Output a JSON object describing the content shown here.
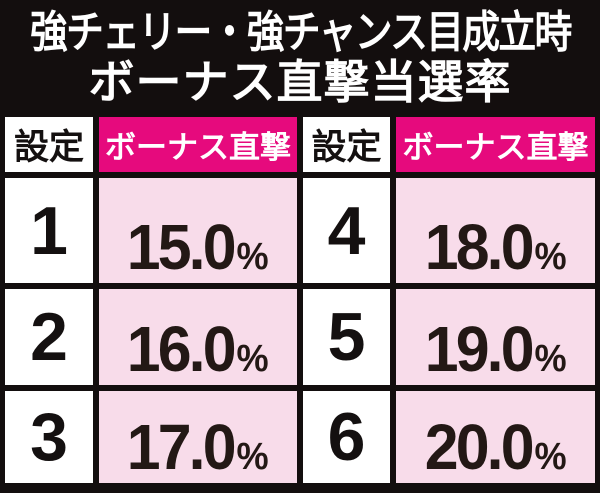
{
  "title": {
    "line1": "強チェリー・強チャンス目成立時",
    "line2": "ボーナス直撃当選率"
  },
  "table": {
    "unit": "%",
    "header": {
      "setting": "設定",
      "bonus": "ボーナス直撃"
    },
    "rows": [
      {
        "l_set": "1",
        "l_val": "15.0",
        "r_set": "4",
        "r_val": "18.0"
      },
      {
        "l_set": "2",
        "l_val": "16.0",
        "r_set": "5",
        "r_val": "19.0"
      },
      {
        "l_set": "3",
        "l_val": "17.0",
        "r_set": "6",
        "r_val": "20.0"
      }
    ]
  },
  "colors": {
    "header_magenta": "#e60a7d",
    "value_pink": "#f8dcea",
    "frame_black": "#130e0e",
    "value_text": "#231815"
  },
  "chart_data": {
    "type": "table",
    "title": "強チェリー・強チャンス目成立時 ボーナス直撃当選率",
    "columns": [
      "設定",
      "ボーナス直撃"
    ],
    "rows": [
      [
        "1",
        "15.0%"
      ],
      [
        "2",
        "16.0%"
      ],
      [
        "3",
        "17.0%"
      ],
      [
        "4",
        "18.0%"
      ],
      [
        "5",
        "19.0%"
      ],
      [
        "6",
        "20.0%"
      ]
    ]
  }
}
